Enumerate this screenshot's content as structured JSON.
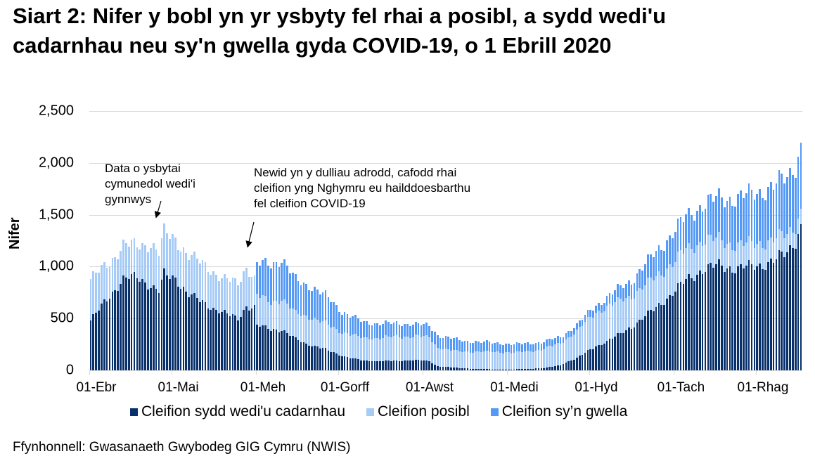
{
  "title": "Siart 2: Nifer y bobl yn yr ysbyty fel rhai a posibl, a sydd wedi'u cadarnhau neu sy'n gwella gyda COVID-19, o 1 Ebrill 2020",
  "source": "Ffynhonnell: Gwasanaeth Gwybodeg GIG Cymru (NWIS)",
  "colors": {
    "confirmed": "#08306b",
    "suspected": "#a6cbf7",
    "recovering": "#5499f5",
    "grid": "#d9d9d9"
  },
  "chart_data": {
    "type": "bar",
    "stacked": true,
    "title": "Siart 2: Nifer y bobl yn yr ysbyty fel rhai a posibl, a sydd wedi'u cadarnhau neu sy'n gwella gyda COVID-19, o 1 Ebrill 2020",
    "xlabel": "",
    "ylabel": "Nifer",
    "ylim": [
      0,
      2500
    ],
    "yticks": [
      0,
      500,
      1000,
      1500,
      2000,
      2500
    ],
    "ytick_labels": [
      "0",
      "500",
      "1,000",
      "1,500",
      "2,000",
      "2,500"
    ],
    "xtick_labels": [
      "01-Ebr",
      "01-Mai",
      "01-Meh",
      "01-Gorff",
      "01-Awst",
      "01-Medi",
      "01-Hyd",
      "01-Tach",
      "01-Rhag"
    ],
    "xtick_day_index": [
      0,
      30,
      61,
      91,
      122,
      153,
      183,
      214,
      244
    ],
    "num_days": 261,
    "grid": true,
    "legend_position": "bottom",
    "series": [
      {
        "name": "Cleifion sydd wedi'u cadarnhau",
        "key": "confirmed"
      },
      {
        "name": "Cleifion posibl",
        "key": "suspected"
      },
      {
        "name": "Cleifion sy’n gwella",
        "key": "recovering"
      }
    ],
    "keypoints": [
      {
        "day": 0,
        "confirmed": 480,
        "suspected": 400,
        "recovering": 0
      },
      {
        "day": 7,
        "confirmed": 720,
        "suspected": 320,
        "recovering": 0
      },
      {
        "day": 12,
        "confirmed": 880,
        "suspected": 330,
        "recovering": 0
      },
      {
        "day": 17,
        "confirmed": 900,
        "suspected": 300,
        "recovering": 0
      },
      {
        "day": 22,
        "confirmed": 820,
        "suspected": 400,
        "recovering": 0
      },
      {
        "day": 25,
        "confirmed": 760,
        "suspected": 370,
        "recovering": 0
      },
      {
        "day": 27,
        "confirmed": 920,
        "suspected": 410,
        "recovering": 0
      },
      {
        "day": 31,
        "confirmed": 890,
        "suspected": 380,
        "recovering": 0
      },
      {
        "day": 36,
        "confirmed": 730,
        "suspected": 370,
        "recovering": 0
      },
      {
        "day": 42,
        "confirmed": 640,
        "suspected": 380,
        "recovering": 0
      },
      {
        "day": 48,
        "confirmed": 560,
        "suspected": 320,
        "recovering": 0
      },
      {
        "day": 54,
        "confirmed": 500,
        "suspected": 350,
        "recovering": 0
      },
      {
        "day": 57,
        "confirmed": 620,
        "suspected": 380,
        "recovering": 0
      },
      {
        "day": 60,
        "confirmed": 600,
        "suspected": 270,
        "recovering": 0
      },
      {
        "day": 61,
        "confirmed": 430,
        "suspected": 290,
        "recovering": 300
      },
      {
        "day": 66,
        "confirmed": 400,
        "suspected": 260,
        "recovering": 370
      },
      {
        "day": 70,
        "confirmed": 390,
        "suspected": 300,
        "recovering": 380
      },
      {
        "day": 75,
        "confirmed": 300,
        "suspected": 250,
        "recovering": 320
      },
      {
        "day": 80,
        "confirmed": 250,
        "suspected": 270,
        "recovering": 300
      },
      {
        "day": 86,
        "confirmed": 200,
        "suspected": 250,
        "recovering": 270
      },
      {
        "day": 92,
        "confirmed": 140,
        "suspected": 230,
        "recovering": 200
      },
      {
        "day": 100,
        "confirmed": 90,
        "suspected": 220,
        "recovering": 150
      },
      {
        "day": 110,
        "confirmed": 90,
        "suspected": 230,
        "recovering": 130
      },
      {
        "day": 118,
        "confirmed": 100,
        "suspected": 230,
        "recovering": 120
      },
      {
        "day": 124,
        "confirmed": 90,
        "suspected": 230,
        "recovering": 110
      },
      {
        "day": 127,
        "confirmed": 40,
        "suspected": 180,
        "recovering": 120
      },
      {
        "day": 135,
        "confirmed": 20,
        "suspected": 160,
        "recovering": 110
      },
      {
        "day": 145,
        "confirmed": 10,
        "suspected": 170,
        "recovering": 90
      },
      {
        "day": 155,
        "confirmed": 10,
        "suspected": 160,
        "recovering": 80
      },
      {
        "day": 165,
        "confirmed": 20,
        "suspected": 180,
        "recovering": 70
      },
      {
        "day": 172,
        "confirmed": 50,
        "suspected": 210,
        "recovering": 60
      },
      {
        "day": 178,
        "confirmed": 120,
        "suspected": 260,
        "recovering": 60
      },
      {
        "day": 185,
        "confirmed": 230,
        "suspected": 330,
        "recovering": 70
      },
      {
        "day": 192,
        "confirmed": 320,
        "suspected": 330,
        "recovering": 110
      },
      {
        "day": 198,
        "confirmed": 420,
        "suspected": 300,
        "recovering": 150
      },
      {
        "day": 205,
        "confirmed": 560,
        "suspected": 300,
        "recovering": 220
      },
      {
        "day": 212,
        "confirmed": 720,
        "suspected": 290,
        "recovering": 280
      },
      {
        "day": 218,
        "confirmed": 870,
        "suspected": 290,
        "recovering": 320
      },
      {
        "day": 224,
        "confirmed": 970,
        "suspected": 280,
        "recovering": 350
      },
      {
        "day": 230,
        "confirmed": 1010,
        "suspected": 250,
        "recovering": 400
      },
      {
        "day": 237,
        "confirmed": 980,
        "suspected": 220,
        "recovering": 460
      },
      {
        "day": 244,
        "confirmed": 1010,
        "suspected": 220,
        "recovering": 490
      },
      {
        "day": 250,
        "confirmed": 1050,
        "suspected": 200,
        "recovering": 520
      },
      {
        "day": 255,
        "confirmed": 1140,
        "suspected": 180,
        "recovering": 550
      },
      {
        "day": 258,
        "confirmed": 1260,
        "suspected": 150,
        "recovering": 580
      },
      {
        "day": 260,
        "confirmed": 1380,
        "suspected": 150,
        "recovering": 620
      }
    ],
    "annotations": [
      {
        "text": "Data o ysbytai cymunedol wedi'i gynnwys",
        "day": 27
      },
      {
        "text": "Newid yn y dulliau adrodd, cafodd rhai cleifion yng Nghymru eu hailddoesbarthu fel cleifion COVID-19",
        "day": 61
      }
    ]
  },
  "annotation1": {
    "line1": "Data o ysbytai",
    "line2": "cymunedol wedi'i",
    "line3": "gynnwys"
  },
  "annotation2": {
    "line1": "Newid yn y dulliau adrodd, cafodd rhai",
    "line2": "cleifion yng Nghymru eu hailddoesbarthu",
    "line3": "fel cleifion COVID-19"
  },
  "legend": {
    "confirmed": "Cleifion sydd wedi'u cadarnhau",
    "suspected": "Cleifion posibl",
    "recovering": "Cleifion sy’n gwella"
  }
}
